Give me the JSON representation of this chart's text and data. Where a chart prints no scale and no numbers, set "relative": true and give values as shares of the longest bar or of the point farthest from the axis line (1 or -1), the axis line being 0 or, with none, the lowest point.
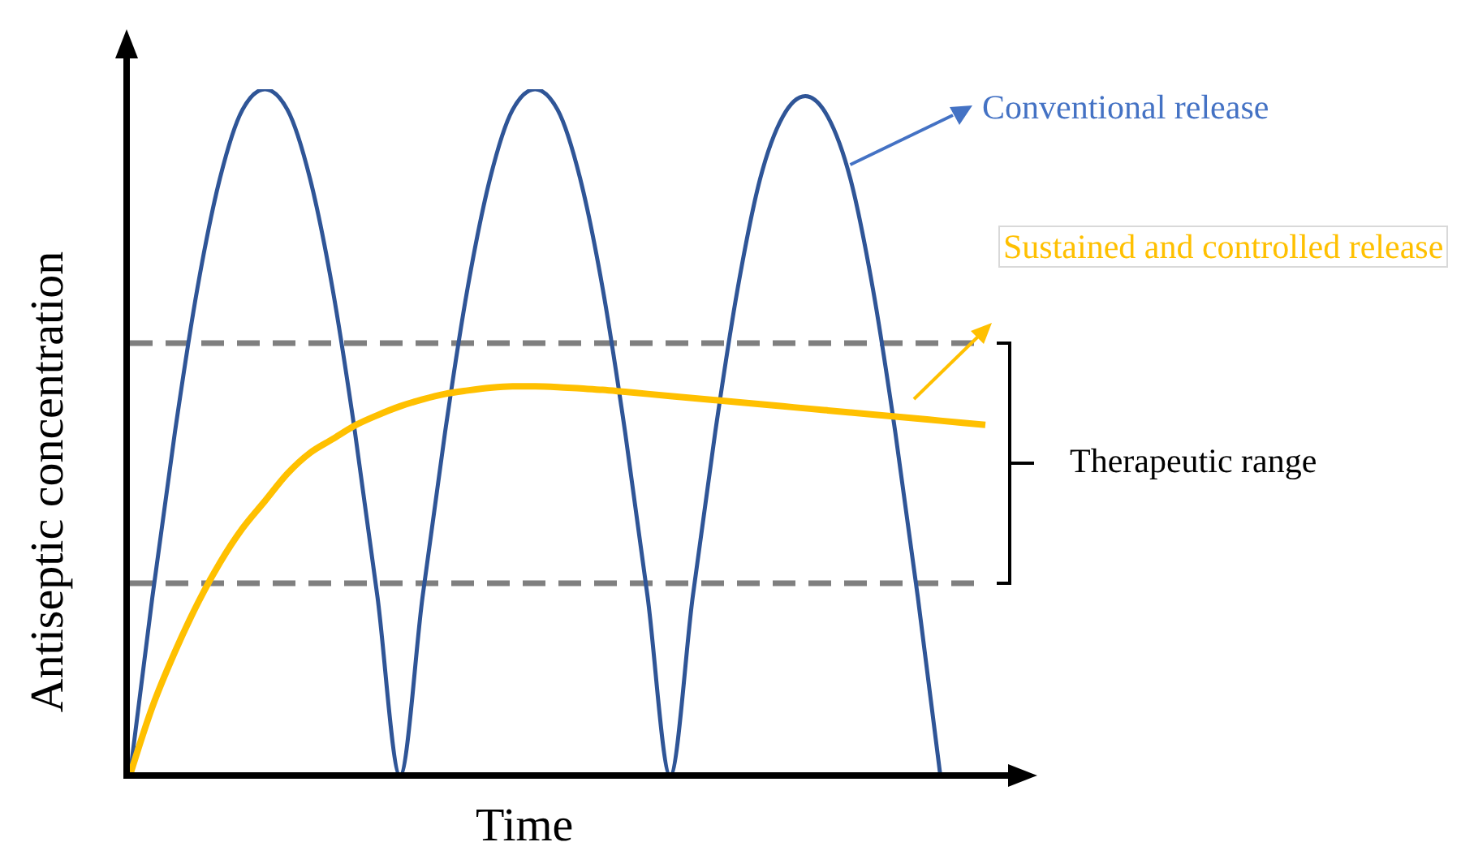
{
  "chart_data": {
    "type": "line",
    "relative": true,
    "xlabel": "Time",
    "ylabel": "Antiseptic concentration",
    "categories": [
      null,
      null,
      null,
      null,
      null,
      null,
      null,
      null,
      null,
      null,
      null,
      null,
      null,
      null,
      null,
      null,
      null,
      null,
      null,
      null,
      null,
      null,
      null,
      null,
      null,
      null,
      null,
      null,
      null,
      null,
      null,
      null,
      null,
      null,
      null,
      null,
      null,
      null,
      null
    ],
    "series": [
      {
        "name": "Conventional release",
        "color": "#2f5597",
        "values": [
          0,
          0.26,
          0.5,
          0.71,
          0.87,
          0.97,
          1,
          0.97,
          0.87,
          0.71,
          0.5,
          0.26,
          0,
          0.26,
          0.5,
          0.71,
          0.87,
          0.97,
          1,
          0.97,
          0.87,
          0.71,
          0.5,
          0.26,
          0,
          0.26,
          0.5,
          0.71,
          0.87,
          0.96,
          0.99,
          0.96,
          0.87,
          0.71,
          0.5,
          0.26,
          0,
          null,
          null
        ]
      },
      {
        "name": "Sustained and controlled release",
        "color": "#ffc000",
        "values": [
          0,
          0.1,
          0.18,
          0.25,
          0.31,
          0.36,
          0.4,
          0.44,
          0.47,
          0.49,
          0.51,
          0.525,
          0.538,
          0.548,
          0.556,
          0.561,
          0.565,
          0.567,
          0.567,
          0.566,
          0.564,
          0.562,
          0.559,
          0.556,
          0.553,
          0.55,
          0.547,
          0.544,
          0.541,
          0.538,
          0.535,
          0.532,
          0.529,
          0.526,
          0.523,
          0.52,
          0.517,
          0.514,
          0.511
        ]
      }
    ],
    "ref_lines": [
      {
        "axis": "y",
        "value": 0.63,
        "color": "#7f7f7f",
        "line_style": "dashed"
      },
      {
        "axis": "y",
        "value": 0.28,
        "color": "#7f7f7f",
        "line_style": "dashed"
      }
    ],
    "annotations": [
      "Therapeutic range"
    ],
    "marker": "none",
    "line_style": "solid"
  }
}
